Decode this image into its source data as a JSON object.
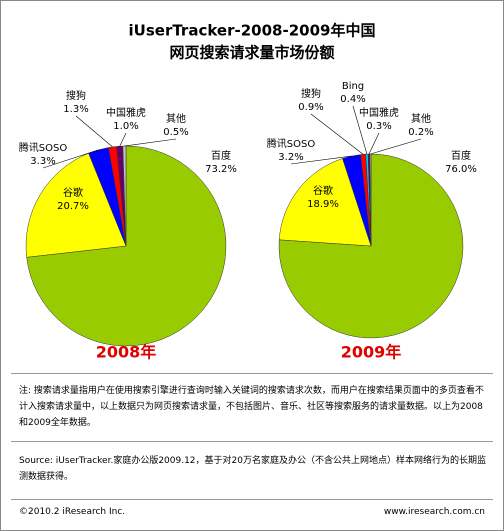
{
  "header": {
    "title": [
      "iUserTracker-2008-2009年中国",
      "网页搜索请求量市场份额"
    ]
  },
  "chart_data": [
    {
      "type": "pie",
      "title": "2008年",
      "categories": [
        "百度",
        "谷歌",
        "腾讯SOSO",
        "搜狗",
        "中国雅虎",
        "其他"
      ],
      "values": [
        73.2,
        20.7,
        3.3,
        1.3,
        1.0,
        0.5
      ],
      "value_labels": [
        "73.2%",
        "20.7%",
        "3.3%",
        "1.3%",
        "1.0%",
        "0.5%"
      ],
      "colors": [
        "#99cc00",
        "#ffff00",
        "#0000ff",
        "#ff0000",
        "#660066",
        "#c0c0c0"
      ]
    },
    {
      "type": "pie",
      "title": "2009年",
      "categories": [
        "百度",
        "谷歌",
        "腾讯SOSO",
        "搜狗",
        "Bing",
        "中国雅虎",
        "其他"
      ],
      "values": [
        76.0,
        18.9,
        3.2,
        0.9,
        0.4,
        0.3,
        0.2
      ],
      "value_labels": [
        "76.0%",
        "18.9%",
        "3.2%",
        "0.9%",
        "0.4%",
        "0.3%",
        "0.2%"
      ],
      "colors": [
        "#99cc00",
        "#ffff00",
        "#0000ff",
        "#ff0000",
        "#00ccff",
        "#660066",
        "#c0c0c0"
      ]
    }
  ],
  "note": "注: 搜索请求量指用户在使用搜索引擎进行查询时输入关键词的搜索请求次数，而用户在搜索结果页面中的多页查看不计入搜索请求量中，以上数据只为网页搜索请求量，不包括图片、音乐、社区等搜索服务的请求量数据。以上为2008和2009全年数据。",
  "source": "Source: iUserTracker.家庭办公版2009.12，基于对20万名家庭及办公（不含公共上网地点）样本网络行为的长期监测数据获得。",
  "footer": {
    "copyright": "©2010.2 iResearch Inc.",
    "url": "www.iresearch.com.cn"
  }
}
